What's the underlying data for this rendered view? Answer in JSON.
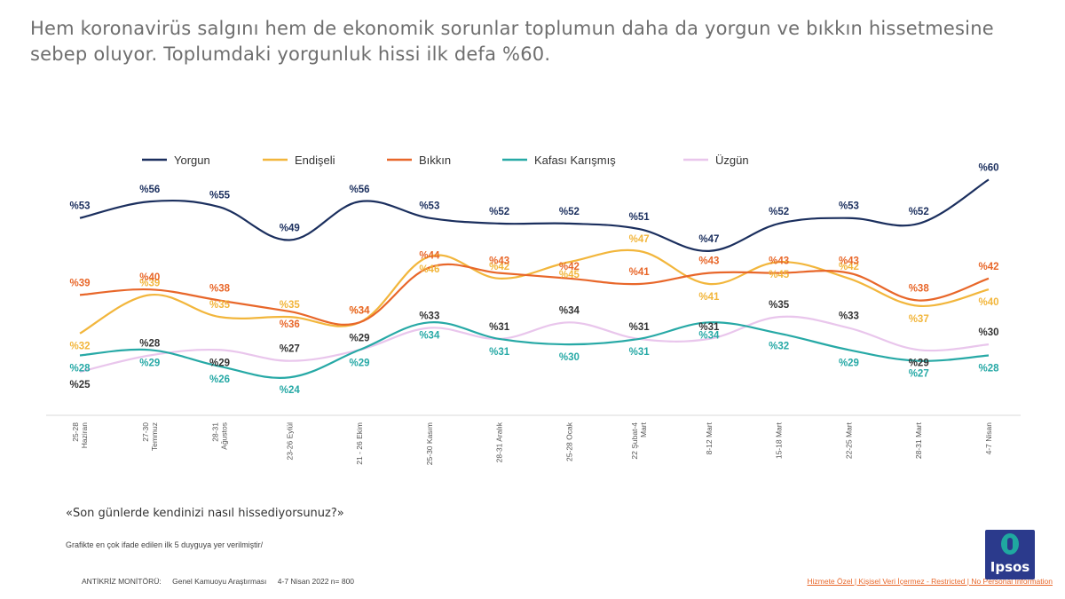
{
  "headline": "Hem koronavirüs salgını hem de ekonomik sorunlar toplumun daha da yorgun ve bıkkın hissetmesine sebep oluyor. Toplumdaki yorgunluk hissi ilk defa %60.",
  "question": "«Son günlerde kendinizi nasıl hissediyorsunuz?»",
  "note": "Grafikte en çok ifade edilen ilk 5 duyguya yer verilmiştir/",
  "footer": {
    "monitor": "ANTİKRİZ MONİTÖRÜ:",
    "survey": "Genel Kamuoyu Araştırması",
    "date": "4-7 Nisan 2022 n= 800",
    "classification": "Hizmete Özel | Kişisel Veri İçermez - Restricted | No Personal Information"
  },
  "logo": {
    "text": "Ipsos",
    "color": "#2b3a8c",
    "accent": "#1fa8a0"
  },
  "chart_data": {
    "type": "line",
    "value_prefix": "%",
    "legend_position": "top",
    "grid": false,
    "ylim": [
      20,
      62
    ],
    "categories": [
      [
        "25-28",
        "Haziran"
      ],
      [
        "27-30",
        "Temmuz"
      ],
      [
        "28-31",
        "Ağustos"
      ],
      [
        "23-26 Eylül"
      ],
      [
        "21 - 26 Ekim"
      ],
      [
        "25-30 Kasım"
      ],
      [
        "28-31 Aralık"
      ],
      [
        "25-28 Ocak"
      ],
      [
        "22 Şubat-4",
        "Mart"
      ],
      [
        "8-12 Mart"
      ],
      [
        "15-18 Mart"
      ],
      [
        "22-25 Mart"
      ],
      [
        "28-31 Mart"
      ],
      [
        "4-7 Nisan"
      ]
    ],
    "series": [
      {
        "name": "Yorgun",
        "color": "#1b2f5e",
        "values": [
          53,
          56,
          55,
          49,
          56,
          53,
          52,
          52,
          51,
          47,
          52,
          53,
          52,
          60
        ],
        "label_pos": [
          "above",
          "above",
          "above",
          "above",
          "above",
          "above",
          "above",
          "above",
          "above",
          "above",
          "above",
          "above",
          "above",
          "above"
        ]
      },
      {
        "name": "Endişeli",
        "color": "#f2b63c",
        "values": [
          32,
          39,
          35,
          35,
          34,
          46,
          42,
          45,
          47,
          41,
          45,
          42,
          37,
          40
        ],
        "label_pos": [
          "below",
          "above",
          "above",
          "above",
          "above",
          "below",
          "above",
          "below",
          "above",
          "below",
          "below",
          "above",
          "below",
          "below"
        ]
      },
      {
        "name": "Bıkkın",
        "color": "#e8672a",
        "values": [
          39,
          40,
          38,
          36,
          34,
          44,
          43,
          42,
          41,
          43,
          43,
          43,
          38,
          42
        ],
        "label_pos": [
          "above",
          "above",
          "above",
          "below",
          "above",
          "above",
          "above",
          "above",
          "above",
          "above",
          "above",
          "above",
          "above",
          "above"
        ]
      },
      {
        "name": "Kafası Karışmış",
        "color": "#27a9a6",
        "values": [
          28,
          29,
          26,
          24,
          29,
          34,
          31,
          30,
          31,
          34,
          32,
          29,
          27,
          28
        ],
        "label_pos": [
          "below",
          "below",
          "below",
          "below",
          "below",
          "below",
          "below",
          "below",
          "below",
          "below",
          "below",
          "below",
          "below",
          "below"
        ]
      },
      {
        "name": "Üzgün",
        "color": "#e9c6ec",
        "values": [
          25,
          28,
          29,
          27,
          29,
          33,
          31,
          34,
          31,
          31,
          35,
          33,
          29,
          30
        ],
        "label_pos": [
          "below",
          "above",
          "below",
          "above",
          "above",
          "above",
          "above",
          "above",
          "above",
          "above",
          "above",
          "above",
          "below",
          "above"
        ]
      }
    ]
  }
}
